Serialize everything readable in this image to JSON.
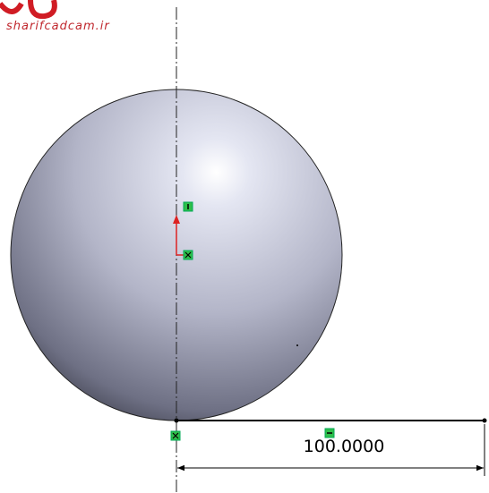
{
  "watermark": "sharifcadcam.ir",
  "dimension": "100.0000"
}
